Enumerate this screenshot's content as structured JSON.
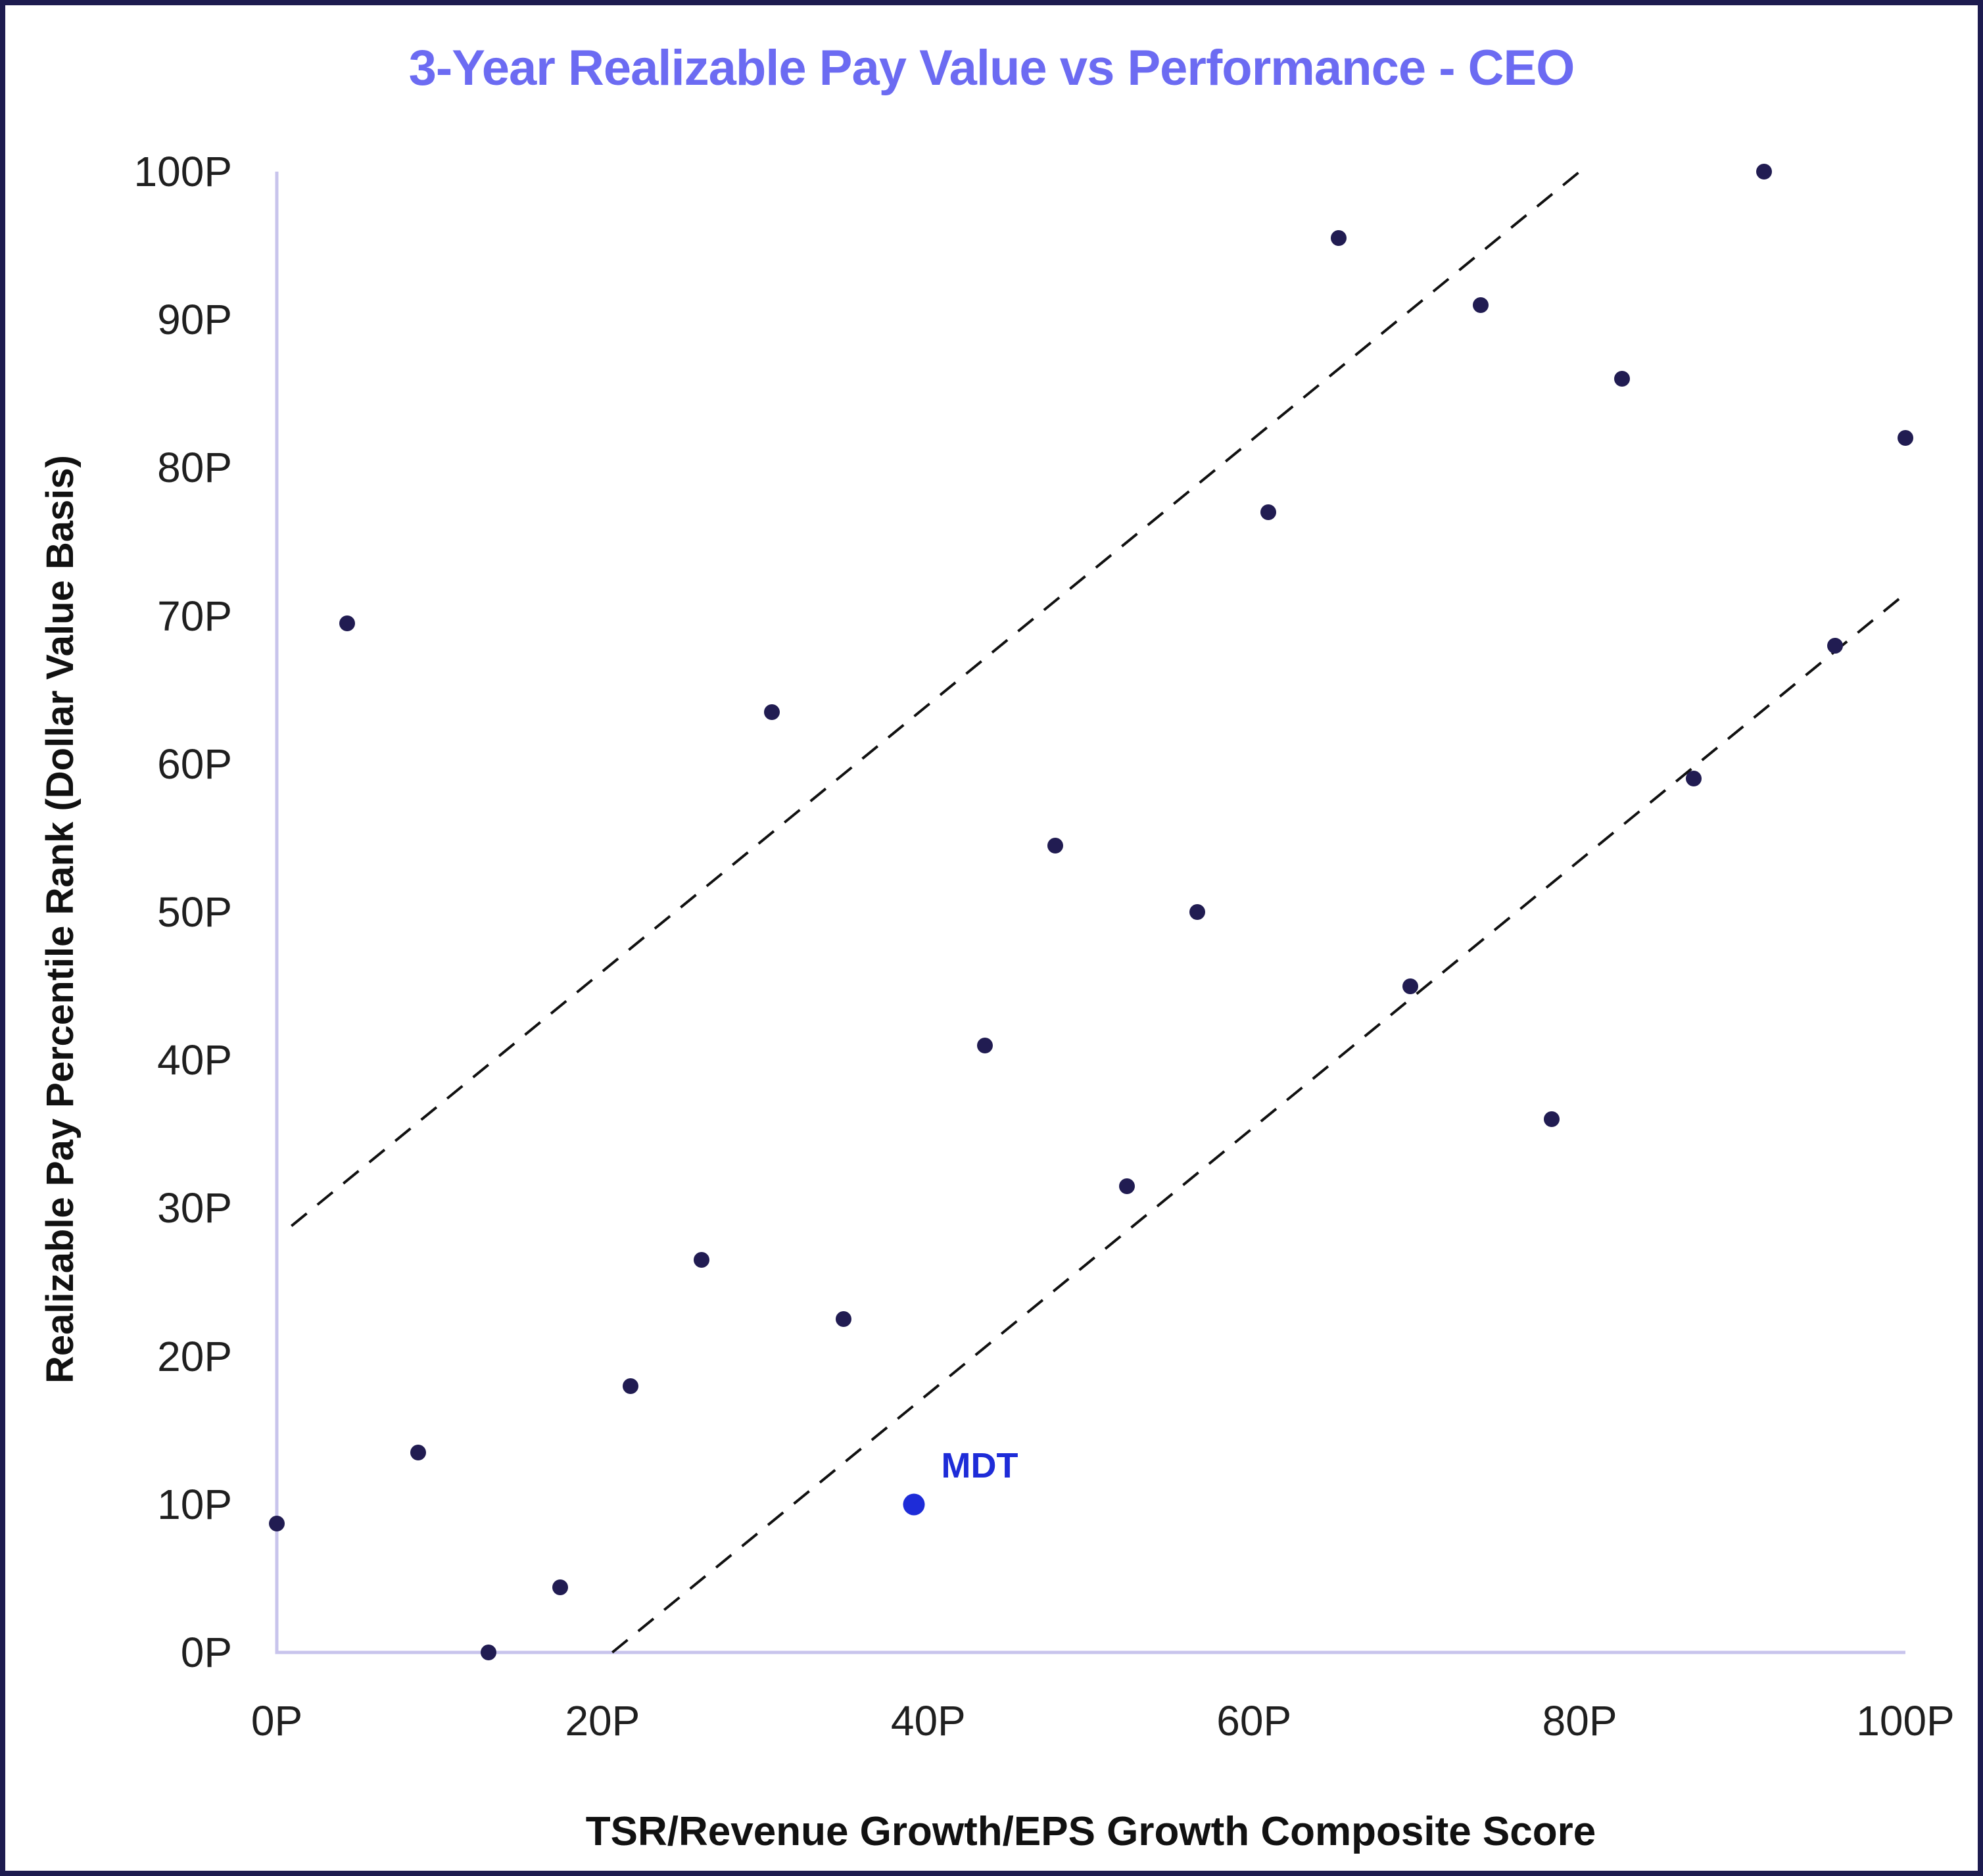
{
  "window": {
    "background": "#ffffff",
    "border_color": "#1d1b4f"
  },
  "title": {
    "text": "3-Year Realizable Pay Value vs Performance - CEO",
    "color": "#6c6bf2"
  },
  "axes": {
    "line_color": "#c8c4ec",
    "tick_label_color": "#1f1f1f",
    "axis_title_color": "#111111"
  },
  "chart_data": {
    "type": "scatter",
    "title": "3-Year Realizable Pay Value vs Performance - CEO",
    "xlabel": "TSR/Revenue Growth/EPS Growth Composite Score",
    "ylabel": "Realizable Pay Percentile Rank (Dollar Value Basis)",
    "xlim": [
      0,
      100
    ],
    "ylim": [
      0,
      100
    ],
    "grid": false,
    "legend": false,
    "x_ticks": [
      {
        "value": 0,
        "label": "0P"
      },
      {
        "value": 20,
        "label": "20P"
      },
      {
        "value": 40,
        "label": "40P"
      },
      {
        "value": 60,
        "label": "60P"
      },
      {
        "value": 80,
        "label": "80P"
      },
      {
        "value": 100,
        "label": "100P"
      }
    ],
    "y_ticks": [
      {
        "value": 0,
        "label": "0P"
      },
      {
        "value": 10,
        "label": "10P"
      },
      {
        "value": 20,
        "label": "20P"
      },
      {
        "value": 30,
        "label": "30P"
      },
      {
        "value": 40,
        "label": "40P"
      },
      {
        "value": 50,
        "label": "50P"
      },
      {
        "value": 60,
        "label": "60P"
      },
      {
        "value": 70,
        "label": "70P"
      },
      {
        "value": 80,
        "label": "80P"
      },
      {
        "value": 90,
        "label": "90P"
      },
      {
        "value": 100,
        "label": "100P"
      }
    ],
    "series": [
      {
        "name": "peers",
        "color": "#211c52",
        "marker_diameter": 24,
        "points": [
          [
            0,
            8.7
          ],
          [
            4.3,
            69.5
          ],
          [
            8.7,
            13.5
          ],
          [
            13,
            0
          ],
          [
            17.4,
            4.4
          ],
          [
            21.7,
            18
          ],
          [
            26.1,
            26.5
          ],
          [
            30.4,
            63.5
          ],
          [
            34.8,
            22.5
          ],
          [
            43.5,
            41
          ],
          [
            47.8,
            54.5
          ],
          [
            52.2,
            31.5
          ],
          [
            56.5,
            50
          ],
          [
            60.9,
            77
          ],
          [
            65.2,
            95.5
          ],
          [
            69.6,
            45
          ],
          [
            73.9,
            91
          ],
          [
            78.3,
            36
          ],
          [
            82.6,
            86
          ],
          [
            87,
            59
          ],
          [
            91.3,
            100
          ],
          [
            95.7,
            68
          ],
          [
            100,
            82
          ]
        ]
      },
      {
        "name": "MDT",
        "color": "#1e2cd8",
        "marker_diameter": 33,
        "label": "MDT",
        "points": [
          [
            39.1,
            10
          ]
        ]
      }
    ],
    "reference_lines": [
      {
        "name": "upper-band",
        "style": "dashed",
        "color": "#111111",
        "points": [
          [
            0.9,
            28.8
          ],
          [
            80,
            100
          ]
        ]
      },
      {
        "name": "lower-band",
        "style": "dashed",
        "color": "#111111",
        "points": [
          [
            20.6,
            0
          ],
          [
            100,
            71.5
          ]
        ]
      }
    ]
  }
}
